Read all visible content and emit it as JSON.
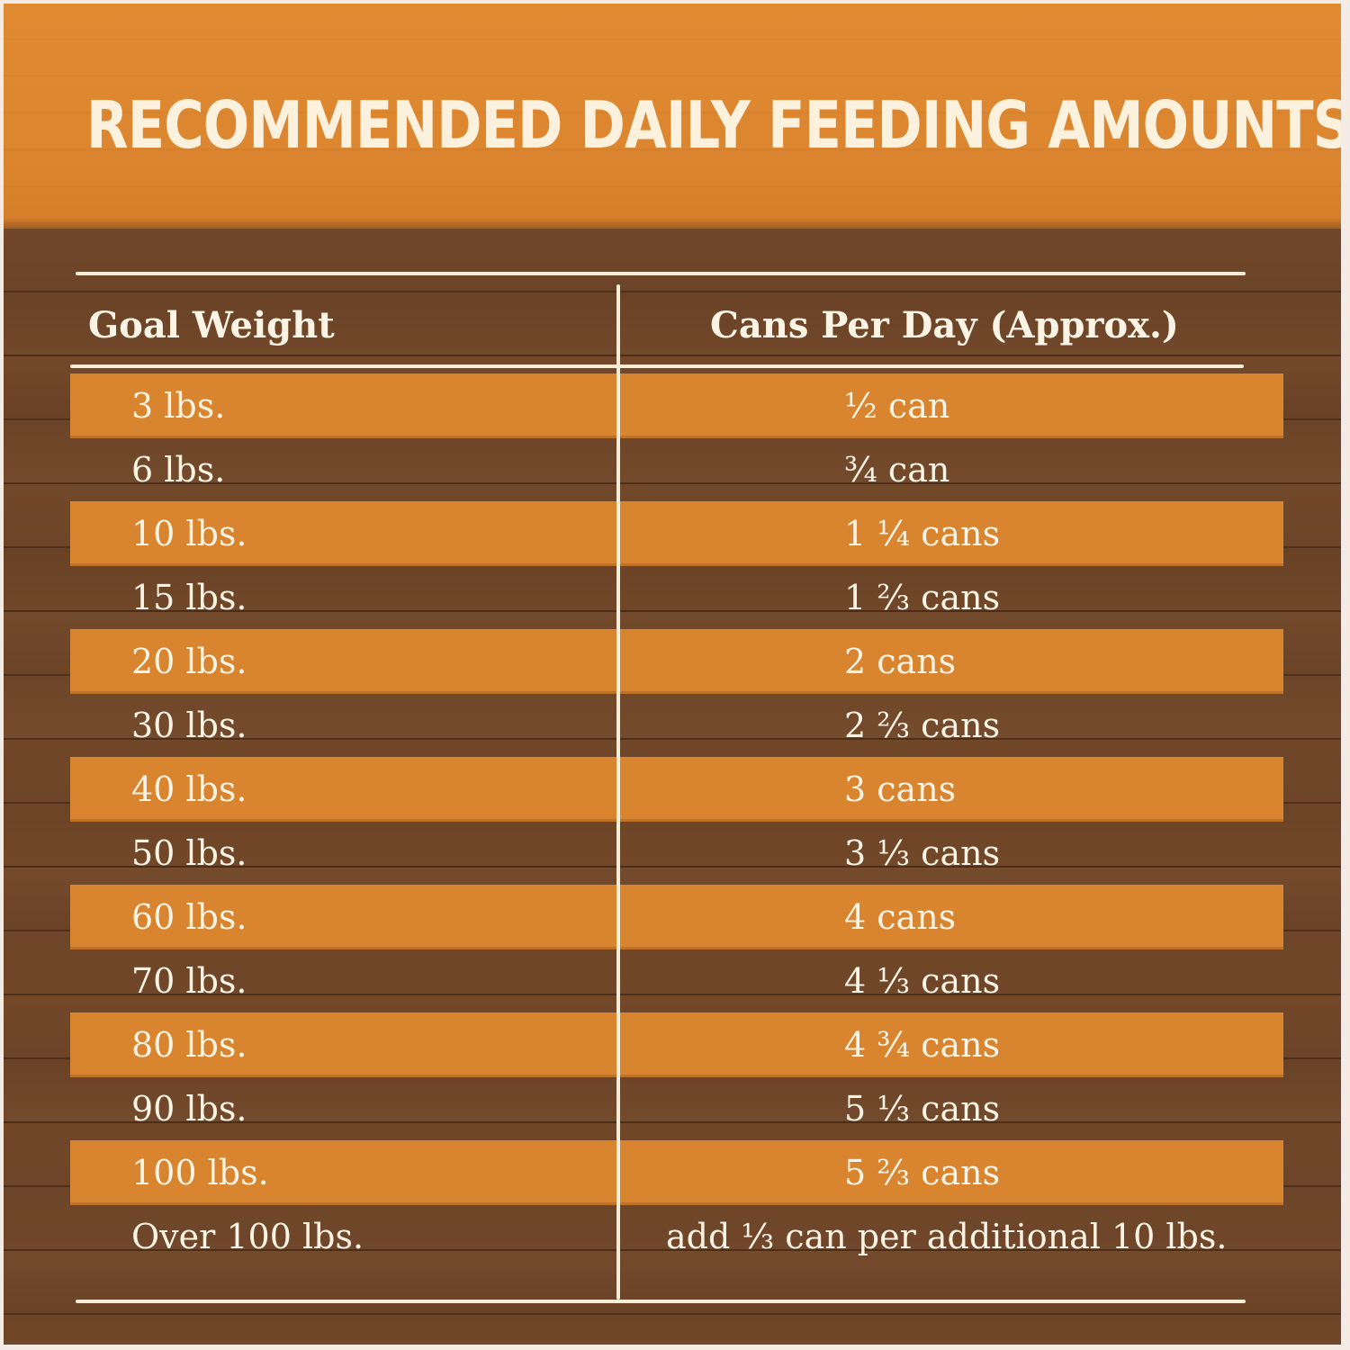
{
  "title": "RECOMMENDED DAILY FEEDING AMOUNTS:",
  "table": {
    "headers": {
      "weight": "Goal Weight",
      "cans": "Cans Per Day (Approx.)"
    },
    "rows": [
      {
        "weight": "3 lbs.",
        "cans": "½ can"
      },
      {
        "weight": "6 lbs.",
        "cans": "¾ can"
      },
      {
        "weight": "10 lbs.",
        "cans": "1 ¼ cans"
      },
      {
        "weight": "15 lbs.",
        "cans": "1 ⅔ cans"
      },
      {
        "weight": "20 lbs.",
        "cans": "2 cans"
      },
      {
        "weight": "30 lbs.",
        "cans": "2 ⅔ cans"
      },
      {
        "weight": "40 lbs.",
        "cans": "3 cans"
      },
      {
        "weight": "50 lbs.",
        "cans": "3 ⅓ cans"
      },
      {
        "weight": "60 lbs.",
        "cans": "4 cans"
      },
      {
        "weight": "70 lbs.",
        "cans": "4 ⅓ cans"
      },
      {
        "weight": "80 lbs.",
        "cans": "4 ¾ cans"
      },
      {
        "weight": "90 lbs.",
        "cans": "5 ⅓ cans"
      },
      {
        "weight": "100 lbs.",
        "cans": "5 ⅔ cans"
      },
      {
        "weight": "Over 100 lbs.",
        "cans": "add ⅓ can per additional 10 lbs."
      }
    ]
  },
  "colors": {
    "header_orange": "#e08a32",
    "stripe_orange": "#d9842f",
    "wood_brown": "#6e4528",
    "cream_text": "#fbf3e3"
  }
}
